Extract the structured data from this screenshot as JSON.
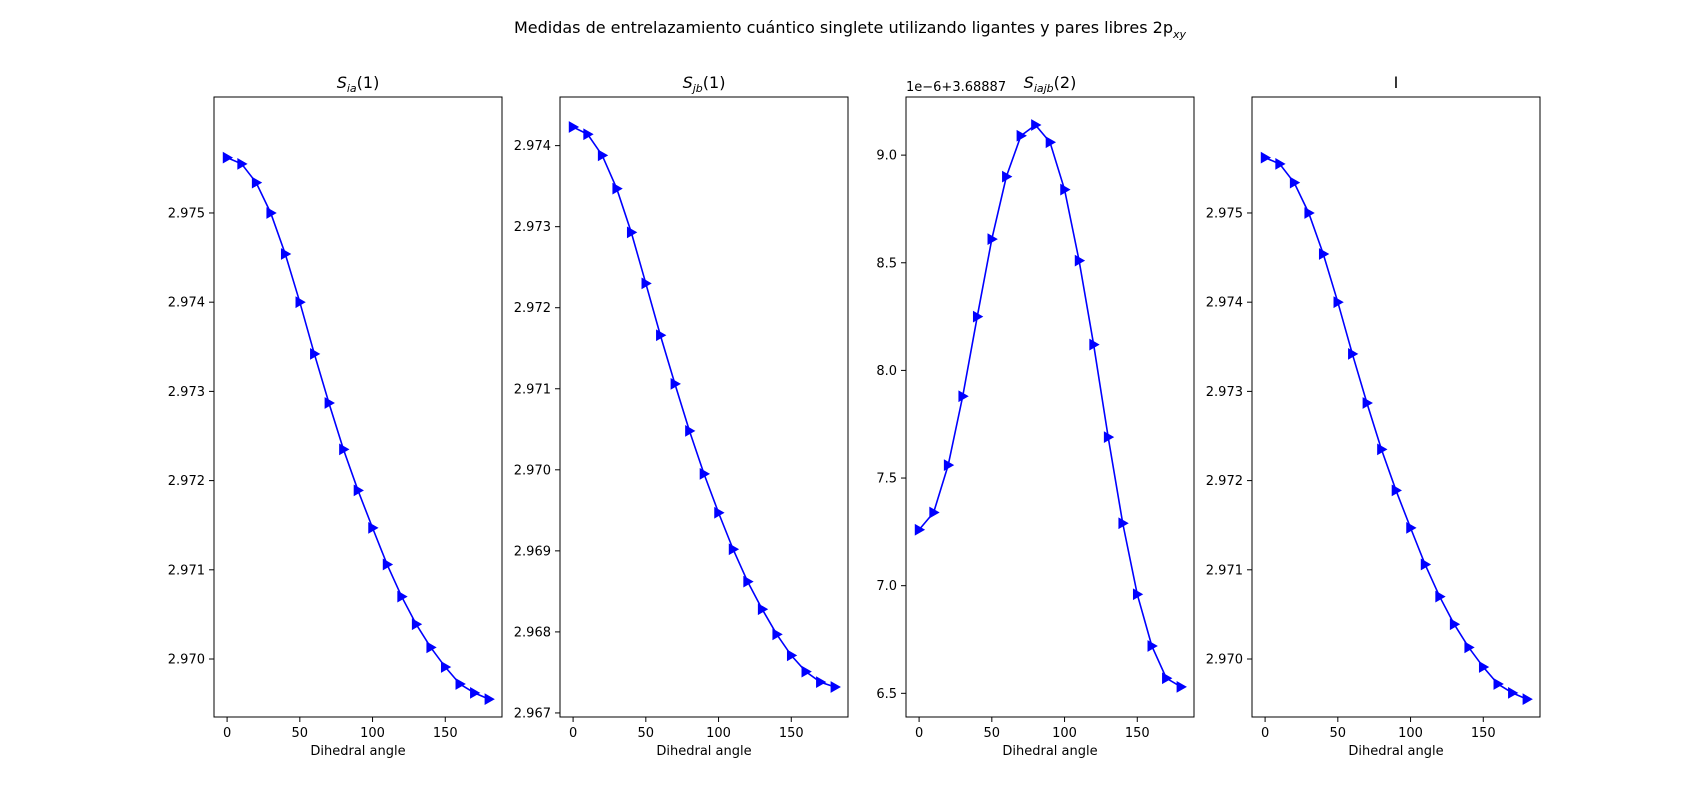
{
  "figure": {
    "suptitle": "Medidas de entrelazamiento cuántico singlete utilizando ligantes y pares libres 2p",
    "suptitle_sub": "xy"
  },
  "colors": {
    "line": "#0000ff",
    "axes": "#000000",
    "background": "#ffffff"
  },
  "chart_data": [
    {
      "type": "line",
      "title": "S",
      "title_sub": "ia",
      "title_tail": "(1)",
      "xlabel": "Dihedral angle",
      "ylabel": "",
      "offset_label": "",
      "marker": "triangle-right",
      "xlim": [
        -9,
        189
      ],
      "ylim": [
        2.96935,
        2.9763
      ],
      "xticks": [
        0,
        50,
        100,
        150
      ],
      "yticks": [
        2.97,
        2.971,
        2.972,
        2.973,
        2.974,
        2.975
      ],
      "ytick_labels": [
        "2.970",
        "2.971",
        "2.972",
        "2.973",
        "2.974",
        "2.975"
      ],
      "grid": false,
      "x": [
        0,
        10,
        20,
        30,
        40,
        50,
        60,
        70,
        80,
        90,
        100,
        110,
        120,
        130,
        140,
        150,
        160,
        170,
        180
      ],
      "y": [
        2.97562,
        2.97555,
        2.97534,
        2.975,
        2.97454,
        2.974,
        2.97342,
        2.97287,
        2.97235,
        2.97189,
        2.97147,
        2.97106,
        2.9707,
        2.97039,
        2.97013,
        2.96991,
        2.96972,
        2.96962,
        2.96955
      ]
    },
    {
      "type": "line",
      "title": "S",
      "title_sub": "jb",
      "title_tail": "(1)",
      "xlabel": "Dihedral angle",
      "ylabel": "",
      "offset_label": "",
      "marker": "triangle-right",
      "xlim": [
        -9,
        189
      ],
      "ylim": [
        2.96695,
        2.9746
      ],
      "xticks": [
        0,
        50,
        100,
        150
      ],
      "yticks": [
        2.967,
        2.968,
        2.969,
        2.97,
        2.971,
        2.972,
        2.973,
        2.974
      ],
      "ytick_labels": [
        "2.967",
        "2.968",
        "2.969",
        "2.970",
        "2.971",
        "2.972",
        "2.973",
        "2.974"
      ],
      "grid": false,
      "x": [
        0,
        10,
        20,
        30,
        40,
        50,
        60,
        70,
        80,
        90,
        100,
        110,
        120,
        130,
        140,
        150,
        160,
        170,
        180
      ],
      "y": [
        2.97423,
        2.97414,
        2.97388,
        2.97347,
        2.97293,
        2.9723,
        2.97166,
        2.97106,
        2.97048,
        2.96995,
        2.96947,
        2.96902,
        2.96862,
        2.96828,
        2.96797,
        2.96771,
        2.96751,
        2.96738,
        2.96732
      ]
    },
    {
      "type": "line",
      "title": "S",
      "title_sub": "iajb",
      "title_tail": "(2)",
      "xlabel": "Dihedral angle",
      "ylabel": "",
      "offset_label": "1e−6+3.68887",
      "marker": "triangle-right",
      "xlim": [
        -9,
        189
      ],
      "ylim": [
        6.39,
        9.27
      ],
      "xticks": [
        0,
        50,
        100,
        150
      ],
      "yticks": [
        6.5,
        7.0,
        7.5,
        8.0,
        8.5,
        9.0
      ],
      "ytick_labels": [
        "6.5",
        "7.0",
        "7.5",
        "8.0",
        "8.5",
        "9.0"
      ],
      "grid": false,
      "x": [
        0,
        10,
        20,
        30,
        40,
        50,
        60,
        70,
        80,
        90,
        100,
        110,
        120,
        130,
        140,
        150,
        160,
        170,
        180
      ],
      "y": [
        7.26,
        7.34,
        7.56,
        7.88,
        8.25,
        8.61,
        8.9,
        9.09,
        9.14,
        9.06,
        8.84,
        8.51,
        8.12,
        7.69,
        7.29,
        6.96,
        6.72,
        6.57,
        6.53
      ]
    },
    {
      "type": "line",
      "title": "I",
      "title_sub": "",
      "title_tail": "",
      "xlabel": "Dihedral angle",
      "ylabel": "",
      "offset_label": "",
      "marker": "triangle-right",
      "xlim": [
        -9,
        189
      ],
      "ylim": [
        2.96935,
        2.9763
      ],
      "xticks": [
        0,
        50,
        100,
        150
      ],
      "yticks": [
        2.97,
        2.971,
        2.972,
        2.973,
        2.974,
        2.975
      ],
      "ytick_labels": [
        "2.970",
        "2.971",
        "2.972",
        "2.973",
        "2.974",
        "2.975"
      ],
      "grid": false,
      "x": [
        0,
        10,
        20,
        30,
        40,
        50,
        60,
        70,
        80,
        90,
        100,
        110,
        120,
        130,
        140,
        150,
        160,
        170,
        180
      ],
      "y": [
        2.97562,
        2.97555,
        2.97534,
        2.975,
        2.97454,
        2.974,
        2.97342,
        2.97287,
        2.97235,
        2.97189,
        2.97147,
        2.97106,
        2.9707,
        2.97039,
        2.97013,
        2.96991,
        2.96972,
        2.96962,
        2.96955
      ]
    }
  ]
}
